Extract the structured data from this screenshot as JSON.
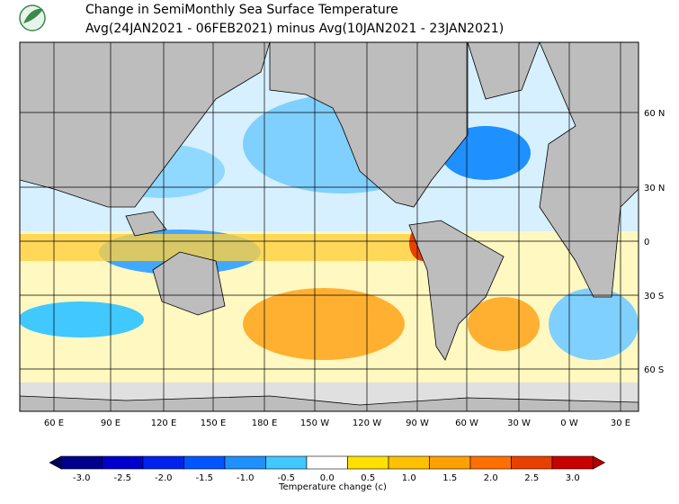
{
  "header": {
    "title": "Change in SemiMonthly Sea Surface Temperature",
    "subtitle": "Avg(24JAN2021 - 06FEB2021) minus Avg(10JAN2021 - 23JAN2021)"
  },
  "map": {
    "latitude_labels": [
      "60 N",
      "30 N",
      "0",
      "30 S",
      "60 S"
    ],
    "longitude_labels": [
      "60 E",
      "90 E",
      "120 E",
      "150 E",
      "180 E",
      "150 W",
      "120 W",
      "90 W",
      "60 W",
      "30 W",
      "0 W",
      "30 E"
    ]
  },
  "colorbar": {
    "ticks": [
      "-3.0",
      "-2.5",
      "-2.0",
      "-1.5",
      "-1.0",
      "-0.5",
      "0.0",
      "0.5",
      "1.0",
      "1.5",
      "2.0",
      "2.5",
      "3.0"
    ],
    "colors": [
      "#00008b",
      "#0000cd",
      "#0022ee",
      "#0055ff",
      "#1e90ff",
      "#40c8ff",
      "#ffffff",
      "#ffe000",
      "#ffc000",
      "#ffa000",
      "#ff7000",
      "#e84000",
      "#c80000"
    ],
    "under_color": "#000060",
    "over_color": "#b00000",
    "label": "Temperature change  (c)"
  }
}
